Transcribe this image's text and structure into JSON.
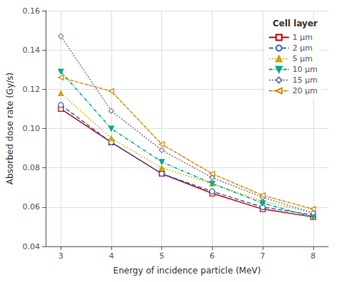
{
  "chart_data": {
    "type": "line",
    "title": "Cell layer",
    "xlabel": "Energy of incidence particle (MeV)",
    "ylabel": "Absorbed dose rate (Gy/s)",
    "x": [
      3,
      4,
      5,
      6,
      7,
      8
    ],
    "series": [
      {
        "name": "1 μm",
        "color": "#cc0000",
        "marker": "open-square",
        "line_style": "solid",
        "values": [
          0.11,
          0.093,
          0.077,
          0.067,
          0.059,
          0.055
        ]
      },
      {
        "name": "2 μm",
        "color": "#3366cc",
        "marker": "open-circle",
        "line_style": "dashed",
        "values": [
          0.112,
          0.093,
          0.077,
          0.068,
          0.06,
          0.056
        ]
      },
      {
        "name": "5 μm",
        "color": "#ccaa00",
        "marker": "filled-triangle-up",
        "line_style": "dotted",
        "values": [
          0.118,
          0.095,
          0.08,
          0.072,
          0.063,
          0.057
        ]
      },
      {
        "name": "10 μm",
        "color": "#00aa88",
        "marker": "filled-triangle-down",
        "line_style": "dash-dot",
        "values": [
          0.129,
          0.1,
          0.083,
          0.072,
          0.062,
          0.055
        ]
      },
      {
        "name": "15 μm",
        "color": "#7777aa",
        "marker": "open-diamond",
        "line_style": "short-dashed",
        "values": [
          0.147,
          0.109,
          0.089,
          0.075,
          0.065,
          0.057
        ]
      },
      {
        "name": "20 μm",
        "color": "#cc8800",
        "marker": "open-triangle-left",
        "line_style": "dash-dot-dense",
        "values": [
          0.126,
          0.119,
          0.092,
          0.077,
          0.066,
          0.059
        ]
      }
    ],
    "xlim": [
      2.7,
      8.3
    ],
    "xticks": [
      3,
      4,
      5,
      6,
      7,
      8
    ],
    "ylim": [
      0.04,
      0.16
    ],
    "yticks": [
      0.04,
      0.06,
      0.08,
      {
        "value": 0.1,
        "label": "0.10"
      },
      0.12,
      0.14,
      0.16
    ],
    "grid": true,
    "legend": "upper right"
  }
}
